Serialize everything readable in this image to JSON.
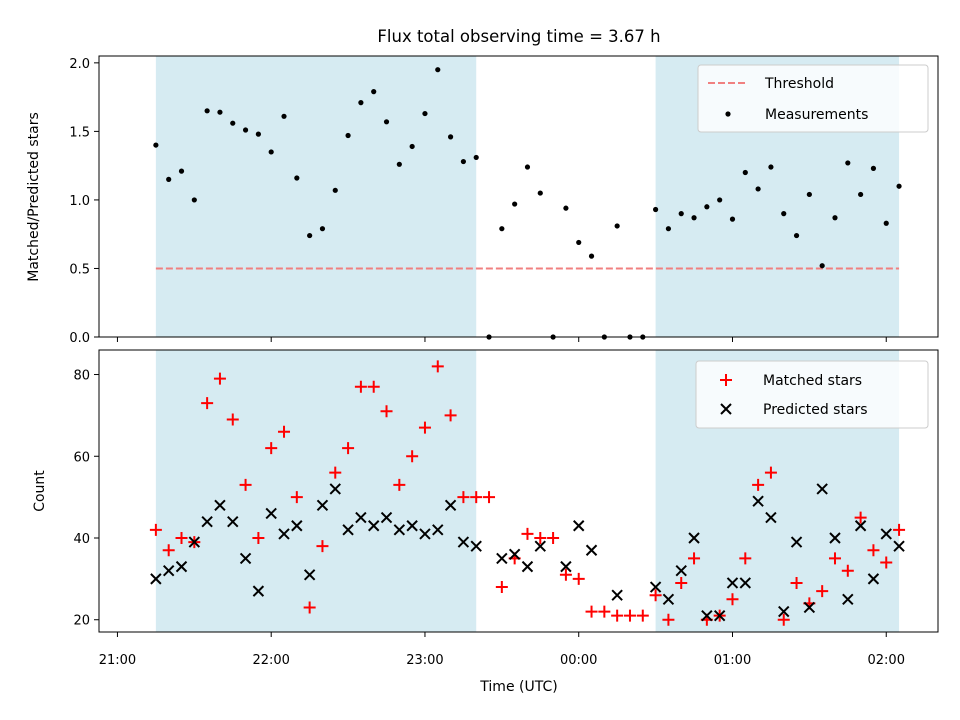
{
  "chart_data": {
    "type": "scatter",
    "title": "Flux total observing time = 3.67 h",
    "xlabel": "Time (UTC)",
    "x_tick_labels": [
      "21:00",
      "22:00",
      "23:00",
      "00:00",
      "01:00",
      "02:00"
    ],
    "shaded_spans": [
      [
        "21:15",
        "23:20"
      ],
      [
        "00:30",
        "02:05"
      ]
    ],
    "top": {
      "ylabel": "Matched/Predicted stars",
      "ylim": [
        0,
        2.05
      ],
      "yticks": [
        "0.0",
        "0.5",
        "1.0",
        "1.5",
        "2.0"
      ],
      "threshold": 0.5,
      "legend": [
        "Threshold",
        "Measurements"
      ],
      "legend_position": "top-right",
      "measurements": [
        [
          "21:15",
          1.4
        ],
        [
          "21:20",
          1.15
        ],
        [
          "21:25",
          1.21
        ],
        [
          "21:30",
          1.0
        ],
        [
          "21:35",
          1.65
        ],
        [
          "21:40",
          1.64
        ],
        [
          "21:45",
          1.56
        ],
        [
          "21:50",
          1.51
        ],
        [
          "21:55",
          1.48
        ],
        [
          "22:00",
          1.35
        ],
        [
          "22:05",
          1.61
        ],
        [
          "22:10",
          1.16
        ],
        [
          "22:15",
          0.74
        ],
        [
          "22:20",
          0.79
        ],
        [
          "22:25",
          1.07
        ],
        [
          "22:30",
          1.47
        ],
        [
          "22:35",
          1.71
        ],
        [
          "22:40",
          1.79
        ],
        [
          "22:45",
          1.57
        ],
        [
          "22:50",
          1.26
        ],
        [
          "22:55",
          1.39
        ],
        [
          "23:00",
          1.63
        ],
        [
          "23:05",
          1.95
        ],
        [
          "23:10",
          1.46
        ],
        [
          "23:15",
          1.28
        ],
        [
          "23:20",
          1.31
        ],
        [
          "23:25",
          0.0
        ],
        [
          "23:30",
          0.79
        ],
        [
          "23:35",
          0.97
        ],
        [
          "23:40",
          1.24
        ],
        [
          "23:45",
          1.05
        ],
        [
          "23:50",
          0.0
        ],
        [
          "23:55",
          0.94
        ],
        [
          "00:00",
          0.69
        ],
        [
          "00:05",
          0.59
        ],
        [
          "00:10",
          0.0
        ],
        [
          "00:15",
          0.81
        ],
        [
          "00:20",
          0.0
        ],
        [
          "00:25",
          0.0
        ],
        [
          "00:30",
          0.93
        ],
        [
          "00:35",
          0.79
        ],
        [
          "00:40",
          0.9
        ],
        [
          "00:45",
          0.87
        ],
        [
          "00:50",
          0.95
        ],
        [
          "00:55",
          1.0
        ],
        [
          "01:00",
          0.86
        ],
        [
          "01:05",
          1.2
        ],
        [
          "01:10",
          1.08
        ],
        [
          "01:15",
          1.24
        ],
        [
          "01:20",
          0.9
        ],
        [
          "01:25",
          0.74
        ],
        [
          "01:30",
          1.04
        ],
        [
          "01:35",
          0.52
        ],
        [
          "01:40",
          0.87
        ],
        [
          "01:45",
          1.27
        ],
        [
          "01:50",
          1.04
        ],
        [
          "01:55",
          1.23
        ],
        [
          "02:00",
          0.83
        ],
        [
          "02:05",
          1.1
        ]
      ]
    },
    "bottom": {
      "ylabel": "Count",
      "ylim": [
        17,
        86
      ],
      "yticks": [
        "20",
        "40",
        "60",
        "80"
      ],
      "legend": [
        "Matched stars",
        "Predicted stars"
      ],
      "legend_position": "top-right",
      "matched": [
        [
          "21:15",
          42
        ],
        [
          "21:20",
          37
        ],
        [
          "21:25",
          40
        ],
        [
          "21:30",
          39
        ],
        [
          "21:35",
          73
        ],
        [
          "21:40",
          79
        ],
        [
          "21:45",
          69
        ],
        [
          "21:50",
          53
        ],
        [
          "21:55",
          40
        ],
        [
          "22:00",
          62
        ],
        [
          "22:05",
          66
        ],
        [
          "22:10",
          50
        ],
        [
          "22:15",
          23
        ],
        [
          "22:20",
          38
        ],
        [
          "22:25",
          56
        ],
        [
          "22:30",
          62
        ],
        [
          "22:35",
          77
        ],
        [
          "22:40",
          77
        ],
        [
          "22:45",
          71
        ],
        [
          "22:50",
          53
        ],
        [
          "22:55",
          60
        ],
        [
          "23:00",
          67
        ],
        [
          "23:05",
          82
        ],
        [
          "23:10",
          70
        ],
        [
          "23:15",
          50
        ],
        [
          "23:20",
          50
        ],
        [
          "23:25",
          50
        ],
        [
          "23:30",
          28
        ],
        [
          "23:35",
          35
        ],
        [
          "23:40",
          41
        ],
        [
          "23:45",
          40
        ],
        [
          "23:50",
          40
        ],
        [
          "23:55",
          31
        ],
        [
          "00:00",
          30
        ],
        [
          "00:05",
          22
        ],
        [
          "00:10",
          22
        ],
        [
          "00:15",
          21
        ],
        [
          "00:20",
          21
        ],
        [
          "00:25",
          21
        ],
        [
          "00:30",
          26
        ],
        [
          "00:35",
          20
        ],
        [
          "00:40",
          29
        ],
        [
          "00:45",
          35
        ],
        [
          "00:50",
          20
        ],
        [
          "00:55",
          21
        ],
        [
          "01:00",
          25
        ],
        [
          "01:05",
          35
        ],
        [
          "01:10",
          53
        ],
        [
          "01:15",
          56
        ],
        [
          "01:20",
          20
        ],
        [
          "01:25",
          29
        ],
        [
          "01:30",
          24
        ],
        [
          "01:35",
          27
        ],
        [
          "01:40",
          35
        ],
        [
          "01:45",
          32
        ],
        [
          "01:50",
          45
        ],
        [
          "01:55",
          37
        ],
        [
          "02:00",
          34
        ],
        [
          "02:05",
          42
        ]
      ],
      "predicted": [
        [
          "21:15",
          30
        ],
        [
          "21:20",
          32
        ],
        [
          "21:25",
          33
        ],
        [
          "21:30",
          39
        ],
        [
          "21:35",
          44
        ],
        [
          "21:40",
          48
        ],
        [
          "21:45",
          44
        ],
        [
          "21:50",
          35
        ],
        [
          "21:55",
          27
        ],
        [
          "22:00",
          46
        ],
        [
          "22:05",
          41
        ],
        [
          "22:10",
          43
        ],
        [
          "22:15",
          31
        ],
        [
          "22:20",
          48
        ],
        [
          "22:25",
          52
        ],
        [
          "22:30",
          42
        ],
        [
          "22:35",
          45
        ],
        [
          "22:40",
          43
        ],
        [
          "22:45",
          45
        ],
        [
          "22:50",
          42
        ],
        [
          "22:55",
          43
        ],
        [
          "23:00",
          41
        ],
        [
          "23:05",
          42
        ],
        [
          "23:10",
          48
        ],
        [
          "23:15",
          39
        ],
        [
          "23:20",
          38
        ],
        [
          "23:30",
          35
        ],
        [
          "23:35",
          36
        ],
        [
          "23:40",
          33
        ],
        [
          "23:45",
          38
        ],
        [
          "23:55",
          33
        ],
        [
          "00:00",
          43
        ],
        [
          "00:05",
          37
        ],
        [
          "00:15",
          26
        ],
        [
          "00:30",
          28
        ],
        [
          "00:35",
          25
        ],
        [
          "00:40",
          32
        ],
        [
          "00:45",
          40
        ],
        [
          "00:50",
          21
        ],
        [
          "00:55",
          21
        ],
        [
          "01:00",
          29
        ],
        [
          "01:05",
          29
        ],
        [
          "01:10",
          49
        ],
        [
          "01:15",
          45
        ],
        [
          "01:20",
          22
        ],
        [
          "01:25",
          39
        ],
        [
          "01:30",
          23
        ],
        [
          "01:35",
          52
        ],
        [
          "01:40",
          40
        ],
        [
          "01:45",
          25
        ],
        [
          "01:50",
          43
        ],
        [
          "01:55",
          30
        ],
        [
          "02:00",
          41
        ],
        [
          "02:05",
          38
        ]
      ]
    },
    "colors": {
      "shade": "#add8e6",
      "threshold": "#f08080",
      "measurements": "#000000",
      "matched": "#ff0000",
      "predicted": "#000000"
    }
  }
}
